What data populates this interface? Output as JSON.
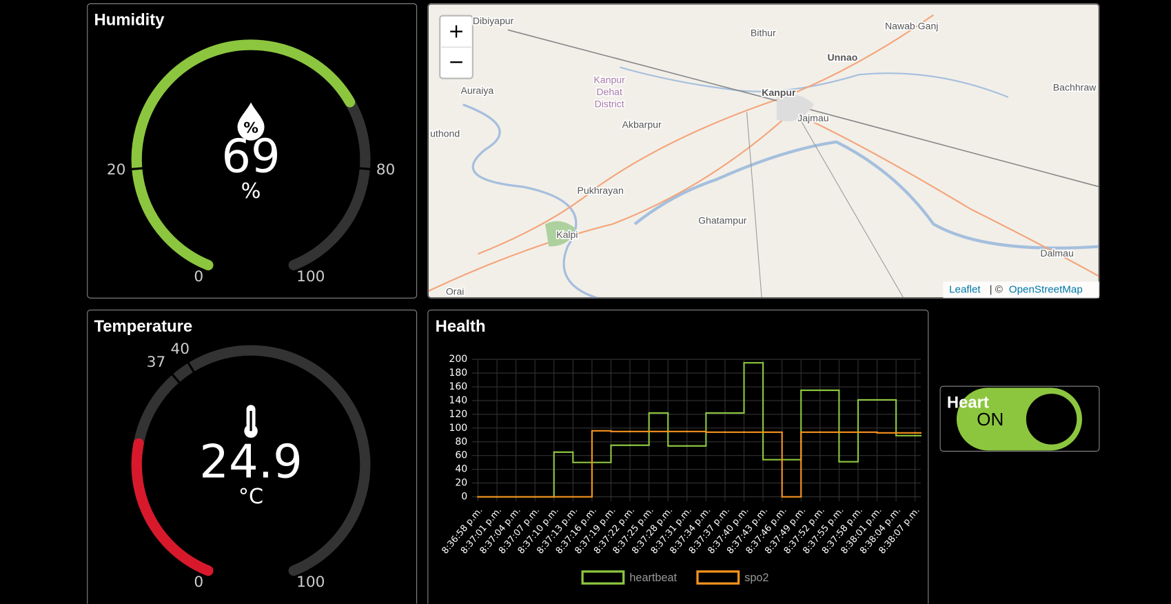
{
  "humidity": {
    "title": "Humidity",
    "value": 69,
    "unit": "%",
    "min": 0,
    "max": 100,
    "thresholds": [
      20,
      80
    ],
    "color": "#8cc63f"
  },
  "map": {
    "zoom_in": "+",
    "zoom_out": "−",
    "labels": [
      "Dibiyapur",
      "Bithur",
      "Nawab Ganj",
      "Unnao",
      "Auraiya",
      "Kanpur",
      "Bachhraw",
      "Jajmau",
      "Akbarpur",
      "uthond",
      "Pukhrayan",
      "Ghatampur",
      "Kalpi",
      "Dalmau",
      "Orai"
    ],
    "district": [
      "Kanpur",
      "Dehat",
      "District"
    ],
    "attribution": {
      "leaflet": "Leaflet",
      "separator": "| ©",
      "osm": "OpenStreetMap"
    }
  },
  "temperature": {
    "title": "Temperature",
    "value": 24.9,
    "unit": "°C",
    "min": 0,
    "max": 100,
    "thresholds": [
      37,
      40
    ],
    "color": "#d8192c"
  },
  "heart": {
    "title": "Heart",
    "state": "ON",
    "color": "#8cc63f"
  },
  "chart_data": {
    "type": "line",
    "title": "Health",
    "step": true,
    "categories": [
      "8:36:58 p.m.",
      "8:37:01 p.m.",
      "8:37:04 p.m.",
      "8:37:07 p.m.",
      "8:37:10 p.m.",
      "8:37:13 p.m.",
      "8:37:16 p.m.",
      "8:37:19 p.m.",
      "8:37:22 p.m.",
      "8:37:25 p.m.",
      "8:37:28 p.m.",
      "8:37:31 p.m.",
      "8:37:34 p.m.",
      "8:37:37 p.m.",
      "8:37:40 p.m.",
      "8:37:43 p.m.",
      "8:37:46 p.m.",
      "8:37:49 p.m.",
      "8:37:52 p.m.",
      "8:37:55 p.m.",
      "8:37:58 p.m.",
      "8:38:01 p.m.",
      "8:38:04 p.m.",
      "8:38:07 p.m."
    ],
    "series": [
      {
        "name": "heartbeat",
        "color": "#8cc63f",
        "values": [
          0,
          0,
          0,
          0,
          65,
          50,
          50,
          75,
          75,
          122,
          74,
          74,
          122,
          122,
          195,
          54,
          54,
          155,
          155,
          51,
          141,
          141,
          89,
          89
        ]
      },
      {
        "name": "spo2",
        "color": "#f7931e",
        "values": [
          0,
          0,
          0,
          0,
          0,
          0,
          96,
          95,
          95,
          95,
          95,
          95,
          94,
          94,
          94,
          94,
          0,
          94,
          94,
          94,
          94,
          93,
          93,
          93
        ]
      }
    ],
    "ylim": [
      0,
      200
    ],
    "yticks": [
      0,
      20,
      40,
      60,
      80,
      100,
      120,
      140,
      160,
      180,
      200
    ],
    "grid": true,
    "legend": "bottom"
  }
}
